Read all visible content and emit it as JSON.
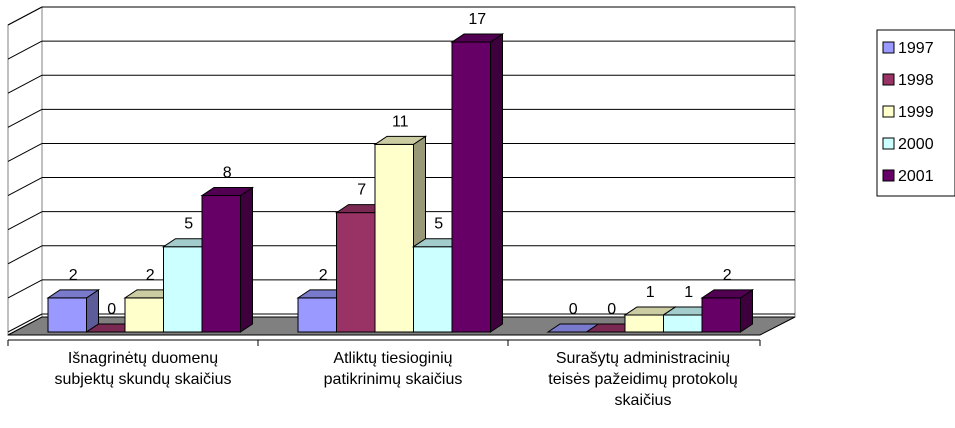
{
  "chart_data": {
    "type": "bar3d",
    "categories": [
      [
        "Išnagrinėtų duomenų",
        "subjektų skundų skaičius"
      ],
      [
        "Atliktų tiesioginių",
        "patikrinimų skaičius"
      ],
      [
        "Surašytų administracinių",
        "teisės pažeidimų protokolų",
        "skaičius"
      ]
    ],
    "series": [
      {
        "name": "1997",
        "color": "#9999ff",
        "values": [
          2,
          2,
          0
        ]
      },
      {
        "name": "1998",
        "color": "#993366",
        "values": [
          0,
          7,
          0
        ]
      },
      {
        "name": "1999",
        "color": "#ffffcc",
        "values": [
          2,
          11,
          1
        ]
      },
      {
        "name": "2000",
        "color": "#ccffff",
        "values": [
          5,
          5,
          1
        ]
      },
      {
        "name": "2001",
        "color": "#660066",
        "values": [
          8,
          17,
          2
        ]
      }
    ],
    "ylim": [
      0,
      18
    ],
    "yticks": [
      0,
      2,
      4,
      6,
      8,
      10,
      12,
      14,
      16,
      18
    ],
    "grid": true,
    "legend": "right"
  }
}
